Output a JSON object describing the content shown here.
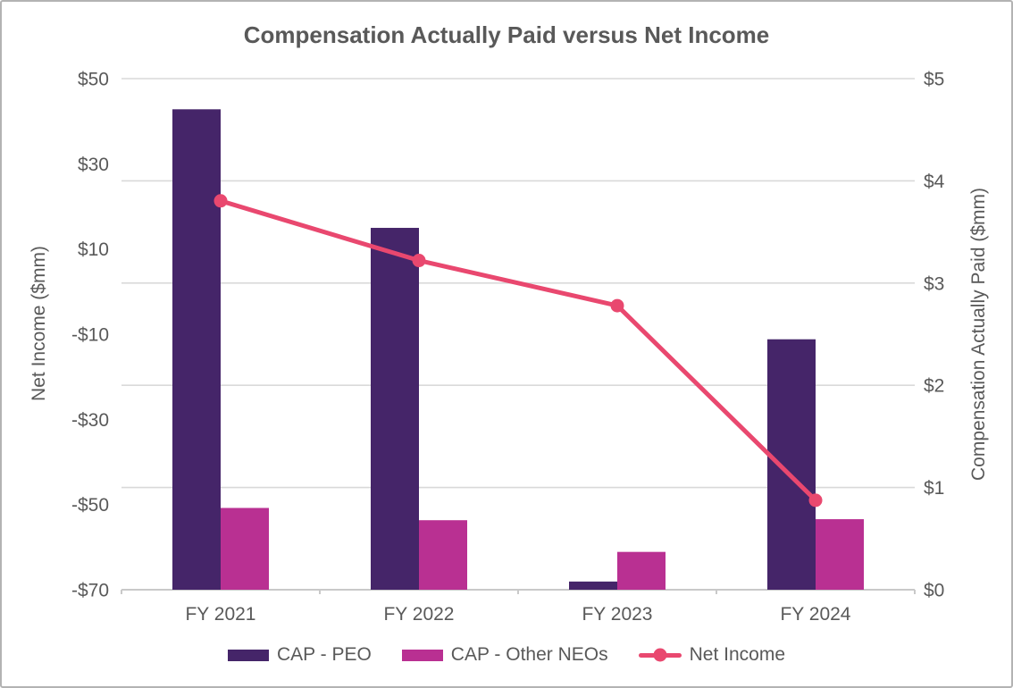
{
  "chart_data": {
    "type": "bar+line combo",
    "title": "Compensation Actually Paid versus Net Income",
    "categories": [
      "FY 2021",
      "FY 2022",
      "FY 2023",
      "FY 2024"
    ],
    "bar_series": [
      {
        "name": "CAP - PEO",
        "axis": "right",
        "color": "#452569",
        "values": [
          4.7,
          3.54,
          0.08,
          2.45
        ]
      },
      {
        "name": "CAP - Other NEOs",
        "axis": "right",
        "color": "#B93092",
        "values": [
          0.8,
          0.68,
          0.37,
          0.69
        ]
      }
    ],
    "line_series": [
      {
        "name": "Net Income",
        "axis": "left",
        "color": "#E9486F",
        "values": [
          21.3,
          7.3,
          -3.3,
          -49
        ]
      }
    ],
    "left_axis": {
      "label": "Net Income ($mm)",
      "min": -70,
      "max": 50,
      "ticks": [
        {
          "value": 50,
          "label": "$50"
        },
        {
          "value": 30,
          "label": "$30"
        },
        {
          "value": 10,
          "label": "$10"
        },
        {
          "value": -10,
          "label": "-$10"
        },
        {
          "value": -30,
          "label": "-$30"
        },
        {
          "value": -50,
          "label": "-$50"
        },
        {
          "value": -70,
          "label": "-$70"
        }
      ]
    },
    "right_axis": {
      "label": "Compensation Actually Paid ($mm)",
      "min": 0,
      "max": 5,
      "ticks": [
        {
          "value": 5,
          "label": "$5"
        },
        {
          "value": 4,
          "label": "$4"
        },
        {
          "value": 3,
          "label": "$3"
        },
        {
          "value": 2,
          "label": "$2"
        },
        {
          "value": 1,
          "label": "$1"
        },
        {
          "value": 0,
          "label": "$0"
        }
      ]
    },
    "grid": {
      "horizontal": true,
      "aligned_to": "right_axis",
      "color": "#D9D9D9"
    },
    "axis_line_color": "#C9C9C9",
    "text_color": "#595959",
    "legend_position": "bottom"
  }
}
